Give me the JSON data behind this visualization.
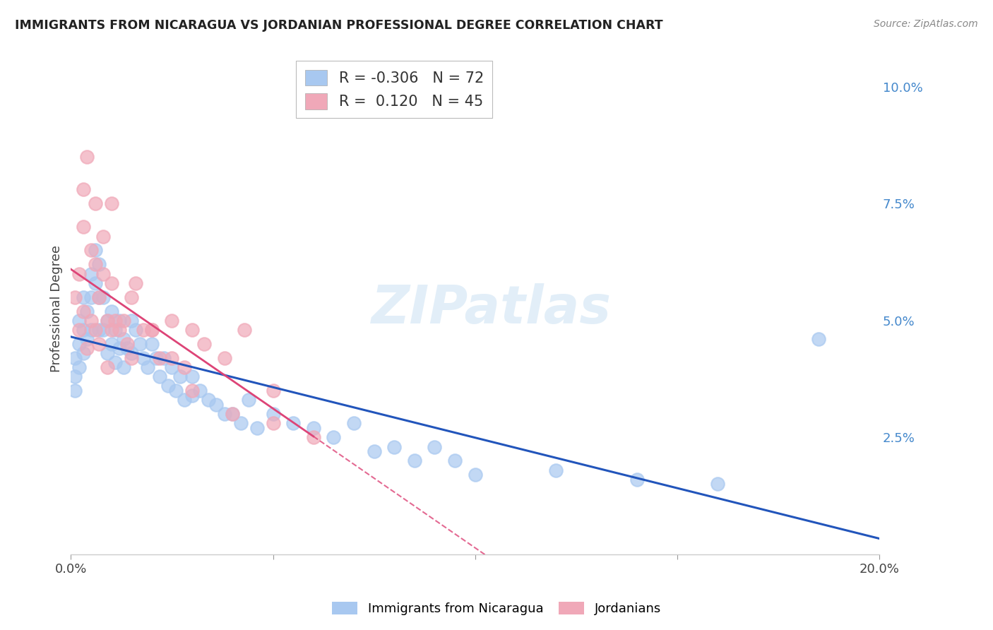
{
  "title": "IMMIGRANTS FROM NICARAGUA VS JORDANIAN PROFESSIONAL DEGREE CORRELATION CHART",
  "source": "Source: ZipAtlas.com",
  "ylabel": "Professional Degree",
  "right_yticks": [
    "10.0%",
    "7.5%",
    "5.0%",
    "2.5%"
  ],
  "right_ytick_vals": [
    0.1,
    0.075,
    0.05,
    0.025
  ],
  "xmin": 0.0,
  "xmax": 0.2,
  "ymin": 0.0,
  "ymax": 0.105,
  "legend_blue_r": "-0.306",
  "legend_blue_n": "72",
  "legend_pink_r": "0.120",
  "legend_pink_n": "45",
  "blue_color": "#a8c8f0",
  "pink_color": "#f0a8b8",
  "blue_line_color": "#2255bb",
  "pink_line_color": "#dd4477",
  "watermark": "ZIPatlas",
  "blue_scatter_x": [
    0.001,
    0.001,
    0.001,
    0.002,
    0.002,
    0.002,
    0.003,
    0.003,
    0.003,
    0.004,
    0.004,
    0.005,
    0.005,
    0.005,
    0.006,
    0.006,
    0.007,
    0.007,
    0.007,
    0.008,
    0.008,
    0.009,
    0.009,
    0.01,
    0.01,
    0.011,
    0.011,
    0.012,
    0.012,
    0.013,
    0.013,
    0.014,
    0.015,
    0.015,
    0.016,
    0.017,
    0.018,
    0.019,
    0.02,
    0.021,
    0.022,
    0.023,
    0.024,
    0.025,
    0.026,
    0.027,
    0.028,
    0.03,
    0.03,
    0.032,
    0.034,
    0.036,
    0.038,
    0.04,
    0.042,
    0.044,
    0.046,
    0.05,
    0.055,
    0.06,
    0.065,
    0.07,
    0.075,
    0.08,
    0.085,
    0.09,
    0.095,
    0.1,
    0.12,
    0.14,
    0.16,
    0.185
  ],
  "blue_scatter_y": [
    0.042,
    0.038,
    0.035,
    0.05,
    0.045,
    0.04,
    0.055,
    0.048,
    0.043,
    0.052,
    0.046,
    0.06,
    0.055,
    0.048,
    0.065,
    0.058,
    0.062,
    0.055,
    0.048,
    0.055,
    0.048,
    0.05,
    0.043,
    0.052,
    0.045,
    0.048,
    0.041,
    0.05,
    0.044,
    0.046,
    0.04,
    0.044,
    0.05,
    0.043,
    0.048,
    0.045,
    0.042,
    0.04,
    0.045,
    0.042,
    0.038,
    0.042,
    0.036,
    0.04,
    0.035,
    0.038,
    0.033,
    0.038,
    0.034,
    0.035,
    0.033,
    0.032,
    0.03,
    0.03,
    0.028,
    0.033,
    0.027,
    0.03,
    0.028,
    0.027,
    0.025,
    0.028,
    0.022,
    0.023,
    0.02,
    0.023,
    0.02,
    0.017,
    0.018,
    0.016,
    0.015,
    0.046
  ],
  "pink_scatter_x": [
    0.001,
    0.002,
    0.002,
    0.003,
    0.003,
    0.004,
    0.004,
    0.005,
    0.005,
    0.006,
    0.006,
    0.007,
    0.007,
    0.008,
    0.008,
    0.009,
    0.009,
    0.01,
    0.01,
    0.011,
    0.012,
    0.013,
    0.014,
    0.015,
    0.016,
    0.018,
    0.02,
    0.022,
    0.025,
    0.028,
    0.03,
    0.033,
    0.038,
    0.043,
    0.05,
    0.003,
    0.006,
    0.01,
    0.015,
    0.02,
    0.025,
    0.03,
    0.04,
    0.05,
    0.06
  ],
  "pink_scatter_y": [
    0.055,
    0.048,
    0.06,
    0.052,
    0.07,
    0.044,
    0.085,
    0.05,
    0.065,
    0.048,
    0.062,
    0.055,
    0.045,
    0.06,
    0.068,
    0.05,
    0.04,
    0.048,
    0.058,
    0.05,
    0.048,
    0.05,
    0.045,
    0.042,
    0.058,
    0.048,
    0.048,
    0.042,
    0.05,
    0.04,
    0.048,
    0.045,
    0.042,
    0.048,
    0.035,
    0.078,
    0.075,
    0.075,
    0.055,
    0.048,
    0.042,
    0.035,
    0.03,
    0.028,
    0.025
  ]
}
